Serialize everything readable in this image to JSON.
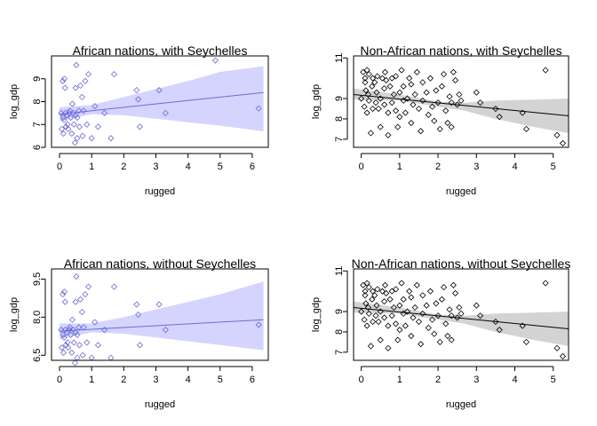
{
  "chart_data": [
    {
      "type": "scatter",
      "title": "African nations, with Seychelles",
      "xlabel": "rugged",
      "ylabel": "log_gdp",
      "xlim": [
        -0.25,
        6.5
      ],
      "ylim": [
        6.0,
        10.0
      ],
      "xticks": [
        "0",
        "1",
        "2",
        "3",
        "4",
        "5",
        "6"
      ],
      "yticks": [
        "6",
        "7",
        "8",
        "9"
      ],
      "point_color": "#6b6bd6",
      "band_color": "#d4d4ff",
      "line_color": "#6b6bd6",
      "fit": {
        "x": [
          0.0,
          6.35
        ],
        "y": [
          7.45,
          8.4
        ]
      },
      "band": {
        "x": [
          0.0,
          1.0,
          2.0,
          3.0,
          4.0,
          5.0,
          6.35
        ],
        "lower": [
          7.15,
          7.45,
          7.4,
          7.25,
          7.1,
          6.95,
          6.7
        ],
        "upper": [
          7.75,
          7.85,
          8.2,
          8.55,
          8.9,
          9.3,
          9.55
        ]
      },
      "points": {
        "x": [
          0.05,
          0.07,
          0.1,
          0.12,
          0.12,
          0.14,
          0.15,
          0.17,
          0.18,
          0.2,
          0.22,
          0.25,
          0.27,
          0.3,
          0.32,
          0.35,
          0.38,
          0.4,
          0.43,
          0.45,
          0.48,
          0.5,
          0.5,
          0.52,
          0.55,
          0.55,
          0.6,
          0.62,
          0.65,
          0.7,
          0.72,
          0.75,
          0.8,
          0.85,
          0.9,
          1.0,
          1.1,
          1.2,
          1.4,
          1.6,
          1.7,
          2.4,
          2.45,
          2.5,
          3.1,
          3.3,
          4.85,
          6.2
        ],
        "y": [
          7.5,
          6.8,
          8.9,
          7.3,
          6.6,
          7.2,
          9.0,
          8.6,
          7.5,
          6.9,
          7.4,
          7.0,
          6.8,
          7.5,
          7.6,
          7.3,
          6.6,
          7.9,
          7.5,
          7.0,
          6.2,
          7.4,
          8.6,
          9.6,
          6.4,
          7.3,
          7.6,
          6.9,
          8.7,
          8.2,
          6.5,
          7.6,
          8.9,
          7.0,
          9.2,
          6.4,
          7.8,
          6.9,
          7.5,
          6.4,
          9.2,
          8.5,
          8.1,
          6.9,
          8.5,
          7.5,
          9.8,
          7.7
        ]
      }
    },
    {
      "type": "scatter",
      "title": "Non-African nations, with Seychelles",
      "xlabel": "rugged",
      "ylabel": "log_gdp",
      "xlim": [
        -0.2,
        5.4
      ],
      "ylim": [
        6.6,
        11.1
      ],
      "xticks": [
        "0",
        "1",
        "2",
        "3",
        "4",
        "5"
      ],
      "yticks": [
        "7",
        "8",
        "9",
        "11"
      ],
      "point_color": "#000000",
      "band_color": "#d3d3d3",
      "line_color": "#000000",
      "fit": {
        "x": [
          -0.2,
          5.4
        ],
        "y": [
          9.2,
          8.15
        ]
      },
      "band": {
        "x": [
          -0.2,
          1.0,
          2.0,
          2.7,
          3.5,
          4.5,
          5.4
        ],
        "lower": [
          8.95,
          8.9,
          8.6,
          8.4,
          8.0,
          7.6,
          7.3
        ],
        "upper": [
          9.5,
          9.2,
          8.85,
          8.8,
          8.9,
          8.95,
          9.0
        ]
      },
      "points": {
        "x": [
          0.0,
          0.05,
          0.08,
          0.1,
          0.1,
          0.12,
          0.15,
          0.15,
          0.18,
          0.2,
          0.2,
          0.25,
          0.28,
          0.3,
          0.3,
          0.35,
          0.38,
          0.4,
          0.42,
          0.45,
          0.5,
          0.5,
          0.55,
          0.6,
          0.6,
          0.62,
          0.65,
          0.7,
          0.7,
          0.75,
          0.8,
          0.8,
          0.85,
          0.9,
          0.9,
          0.95,
          1.0,
          1.0,
          1.05,
          1.1,
          1.1,
          1.15,
          1.2,
          1.25,
          1.3,
          1.3,
          1.35,
          1.4,
          1.45,
          1.5,
          1.55,
          1.6,
          1.6,
          1.7,
          1.75,
          1.8,
          1.85,
          1.9,
          1.95,
          2.0,
          2.05,
          2.1,
          2.15,
          2.2,
          2.25,
          2.3,
          2.35,
          2.35,
          2.4,
          2.45,
          2.5,
          2.55,
          2.6,
          3.0,
          3.1,
          3.5,
          3.6,
          4.2,
          4.3,
          4.8,
          5.1,
          5.25
        ],
        "y": [
          9.0,
          10.3,
          8.6,
          9.8,
          10.0,
          9.4,
          8.3,
          10.4,
          9.2,
          8.9,
          10.2,
          7.3,
          9.6,
          8.5,
          10.0,
          9.8,
          8.8,
          9.3,
          10.1,
          8.5,
          9.0,
          7.6,
          10.0,
          9.5,
          8.7,
          10.3,
          9.9,
          8.3,
          7.2,
          9.6,
          10.0,
          8.8,
          9.2,
          8.4,
          10.1,
          7.6,
          9.3,
          8.1,
          10.4,
          8.9,
          9.6,
          8.3,
          9.0,
          10.0,
          7.8,
          9.7,
          8.7,
          9.2,
          10.3,
          8.5,
          7.4,
          8.9,
          9.8,
          9.3,
          8.2,
          10.0,
          8.6,
          7.9,
          9.4,
          8.8,
          7.5,
          9.6,
          10.2,
          8.4,
          7.8,
          9.1,
          8.8,
          7.6,
          10.3,
          9.9,
          8.7,
          9.2,
          8.9,
          9.3,
          8.8,
          8.5,
          8.1,
          8.3,
          7.5,
          10.4,
          7.2,
          6.8
        ]
      }
    },
    {
      "type": "scatter",
      "title": "African nations, without Seychelles",
      "xlabel": "rugged",
      "ylabel": "log_gdp",
      "xlim": [
        -0.25,
        6.5
      ],
      "ylim": [
        6.3,
        9.9
      ],
      "xticks": [
        "0",
        "1",
        "2",
        "3",
        "4",
        "5",
        "6"
      ],
      "yticks": [
        "6.5",
        "8.0",
        "9.5"
      ],
      "point_color": "#6b6bd6",
      "band_color": "#d4d4ff",
      "line_color": "#6b6bd6",
      "fit": {
        "x": [
          0.0,
          6.35
        ],
        "y": [
          7.45,
          7.9
        ]
      },
      "band": {
        "x": [
          0.0,
          1.0,
          2.0,
          3.0,
          4.0,
          5.0,
          6.35
        ],
        "lower": [
          7.15,
          7.4,
          7.35,
          7.2,
          7.05,
          6.9,
          6.7
        ],
        "upper": [
          7.75,
          7.75,
          8.0,
          8.3,
          8.6,
          8.9,
          9.4
        ]
      },
      "points": {
        "x": [
          0.05,
          0.07,
          0.1,
          0.12,
          0.12,
          0.14,
          0.15,
          0.17,
          0.18,
          0.2,
          0.22,
          0.25,
          0.27,
          0.3,
          0.32,
          0.35,
          0.38,
          0.4,
          0.43,
          0.45,
          0.48,
          0.5,
          0.5,
          0.52,
          0.55,
          0.55,
          0.6,
          0.62,
          0.65,
          0.7,
          0.72,
          0.75,
          0.8,
          0.85,
          0.9,
          1.0,
          1.1,
          1.2,
          1.4,
          1.6,
          1.7,
          2.4,
          2.45,
          2.5,
          3.1,
          3.3,
          6.2
        ],
        "y": [
          7.5,
          6.8,
          8.9,
          7.3,
          6.6,
          7.2,
          9.0,
          8.6,
          7.5,
          6.9,
          7.4,
          7.0,
          6.8,
          7.5,
          7.6,
          7.3,
          6.6,
          7.9,
          7.5,
          7.0,
          6.2,
          7.4,
          8.6,
          9.6,
          6.4,
          7.3,
          7.6,
          6.9,
          8.7,
          8.2,
          6.5,
          7.6,
          8.9,
          7.0,
          9.2,
          6.4,
          7.8,
          6.9,
          7.5,
          6.4,
          9.2,
          8.5,
          8.1,
          6.9,
          8.5,
          7.5,
          7.7
        ]
      }
    },
    {
      "type": "scatter",
      "title": "Non-African nations, without Seychelles",
      "xlabel": "rugged",
      "ylabel": "log_gdp",
      "xlim": [
        -0.2,
        5.4
      ],
      "ylim": [
        6.6,
        11.1
      ],
      "xticks": [
        "0",
        "1",
        "2",
        "3",
        "4",
        "5"
      ],
      "yticks": [
        "7",
        "8",
        "9",
        "11"
      ],
      "point_color": "#000000",
      "band_color": "#d3d3d3",
      "line_color": "#000000",
      "fit": {
        "x": [
          -0.2,
          5.4
        ],
        "y": [
          9.2,
          8.15
        ]
      },
      "band": {
        "x": [
          -0.2,
          1.0,
          2.0,
          2.7,
          3.5,
          4.5,
          5.4
        ],
        "lower": [
          8.95,
          8.9,
          8.6,
          8.4,
          8.0,
          7.6,
          7.3
        ],
        "upper": [
          9.5,
          9.2,
          8.85,
          8.8,
          8.9,
          8.95,
          9.0
        ]
      },
      "points": {
        "x": [
          0.0,
          0.05,
          0.08,
          0.1,
          0.1,
          0.12,
          0.15,
          0.15,
          0.18,
          0.2,
          0.2,
          0.25,
          0.28,
          0.3,
          0.3,
          0.35,
          0.38,
          0.4,
          0.42,
          0.45,
          0.5,
          0.5,
          0.55,
          0.6,
          0.6,
          0.62,
          0.65,
          0.7,
          0.7,
          0.75,
          0.8,
          0.8,
          0.85,
          0.9,
          0.9,
          0.95,
          1.0,
          1.0,
          1.05,
          1.1,
          1.1,
          1.15,
          1.2,
          1.25,
          1.3,
          1.3,
          1.35,
          1.4,
          1.45,
          1.5,
          1.55,
          1.6,
          1.6,
          1.7,
          1.75,
          1.8,
          1.85,
          1.9,
          1.95,
          2.0,
          2.05,
          2.1,
          2.15,
          2.2,
          2.25,
          2.3,
          2.35,
          2.35,
          2.4,
          2.45,
          2.5,
          2.55,
          2.6,
          3.0,
          3.1,
          3.5,
          3.6,
          4.2,
          4.3,
          4.8,
          5.1,
          5.25
        ],
        "y": [
          9.0,
          10.3,
          8.6,
          9.8,
          10.0,
          9.4,
          8.3,
          10.4,
          9.2,
          8.9,
          10.2,
          7.3,
          9.6,
          8.5,
          10.0,
          9.8,
          8.8,
          9.3,
          10.1,
          8.5,
          9.0,
          7.6,
          10.0,
          9.5,
          8.7,
          10.3,
          9.9,
          8.3,
          7.2,
          9.6,
          10.0,
          8.8,
          9.2,
          8.4,
          10.1,
          7.6,
          9.3,
          8.1,
          10.4,
          8.9,
          9.6,
          8.3,
          9.0,
          10.0,
          7.8,
          9.7,
          8.7,
          9.2,
          10.3,
          8.5,
          7.4,
          8.9,
          9.8,
          9.3,
          8.2,
          10.0,
          8.6,
          7.9,
          9.4,
          8.8,
          7.5,
          9.6,
          10.2,
          8.4,
          7.8,
          9.1,
          8.8,
          7.6,
          10.3,
          9.9,
          8.7,
          9.2,
          8.9,
          9.3,
          8.8,
          8.5,
          8.1,
          8.3,
          7.5,
          10.4,
          7.2,
          6.8
        ]
      }
    }
  ]
}
